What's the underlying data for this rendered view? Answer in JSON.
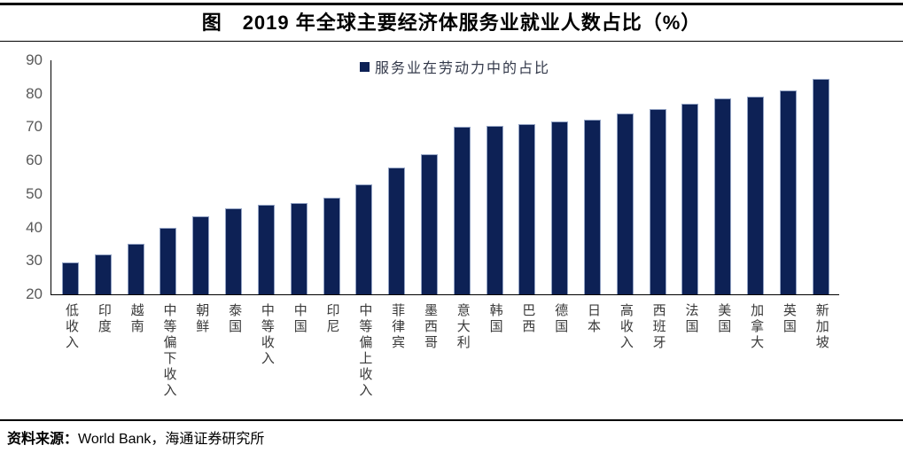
{
  "page": {
    "title": "图　2019 年全球主要经济体服务业就业人数占比（%）",
    "footer_prefix": "资料来源：",
    "footer_source": "World Bank，海通证券研究所"
  },
  "colors": {
    "bar_fill": "#0D2155",
    "bar_border": "#93A3C4",
    "axis_line": "#000000",
    "y_tick_label": "#595959",
    "category_label": "#3A3A3A"
  },
  "chart_data": {
    "type": "bar",
    "title": "图 2019 年全球主要经济体服务业就业人数占比（%）",
    "legend_label": "服务业在劳动力中的占比",
    "legend_position": "top-center",
    "grid": false,
    "xlabel": "",
    "ylabel": "",
    "ylim": [
      20,
      90
    ],
    "yticks": [
      20,
      30,
      40,
      50,
      60,
      70,
      80,
      90
    ],
    "categories": [
      "低收入",
      "印度",
      "越南",
      "中等偏下收入",
      "朝鲜",
      "泰国",
      "中等收入",
      "中国",
      "印尼",
      "中等偏上收入",
      "菲律宾",
      "墨西哥",
      "意大利",
      "韩国",
      "巴西",
      "德国",
      "日本",
      "高收入",
      "西班牙",
      "法国",
      "美国",
      "加拿大",
      "英国",
      "新加坡"
    ],
    "values": [
      29.6,
      32.0,
      35.1,
      39.9,
      43.3,
      45.6,
      46.7,
      47.2,
      48.9,
      53.0,
      57.8,
      61.9,
      70.1,
      70.3,
      71.0,
      71.6,
      72.3,
      74.1,
      75.5,
      77.1,
      78.7,
      79.2,
      81.0,
      84.4
    ]
  }
}
